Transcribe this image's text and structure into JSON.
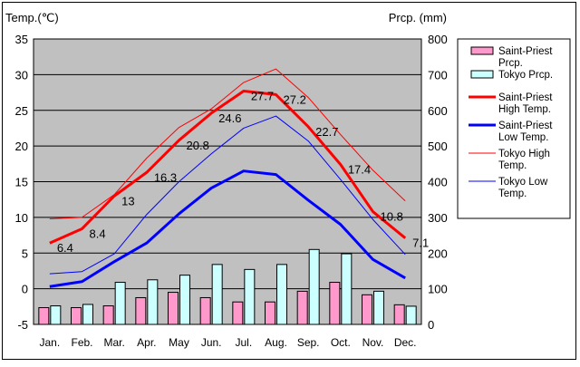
{
  "chart_data": {
    "type": "bar+line",
    "categories": [
      "Jan.",
      "Feb.",
      "Mar.",
      "Apr.",
      "May",
      "Jun.",
      "Jul.",
      "Aug.",
      "Sep.",
      "Oct.",
      "Nov.",
      "Dec."
    ],
    "left_axis": {
      "label": "Temp.(℃)",
      "min": -5,
      "max": 35,
      "step": 5,
      "ticks": [
        "35",
        "30",
        "25",
        "20",
        "15",
        "10",
        "5",
        "0",
        "-5"
      ]
    },
    "right_axis": {
      "label": "Prcp. (mm)",
      "min": 0,
      "max": 800,
      "step": 100,
      "ticks": [
        "800",
        "700",
        "600",
        "500",
        "400",
        "300",
        "200",
        "100",
        "0"
      ]
    },
    "grid": true,
    "legend_position": "right",
    "bar_series": [
      {
        "name": "Saint-Priest Prcp.",
        "color": "#ff99cc",
        "axis": "right",
        "values": [
          47,
          47,
          52,
          75,
          90,
          75,
          63,
          63,
          93,
          118,
          83,
          55
        ]
      },
      {
        "name": "Tokyo Prcp.",
        "color": "#ccffff",
        "axis": "right",
        "values": [
          52,
          56,
          118,
          125,
          138,
          168,
          154,
          168,
          210,
          198,
          93,
          51
        ]
      }
    ],
    "line_series": [
      {
        "name": "Saint-Priest High Temp.",
        "color": "#ff0000",
        "width": 3,
        "axis": "left",
        "values": [
          6.4,
          8.4,
          13,
          16.3,
          20.8,
          24.6,
          27.7,
          27.2,
          22.7,
          17.4,
          10.8,
          7.1
        ],
        "labels": [
          "6.4",
          "8.4",
          "13",
          "16.3",
          "20.8",
          "24.6",
          "27.7",
          "27.2",
          "22.7",
          "17.4",
          "10.8",
          "7.1"
        ]
      },
      {
        "name": "Saint-Priest Low Temp.",
        "color": "#0000ff",
        "width": 3,
        "axis": "left",
        "values": [
          0.3,
          1.0,
          3.8,
          6.4,
          10.5,
          14.1,
          16.5,
          16.0,
          12.4,
          9.0,
          4.1,
          1.5
        ]
      },
      {
        "name": "Tokyo High Temp.",
        "color": "#ff0000",
        "width": 1,
        "axis": "left",
        "values": [
          9.8,
          10.0,
          13.2,
          18.3,
          22.6,
          25.2,
          28.9,
          30.8,
          26.8,
          21.6,
          16.6,
          12.3
        ]
      },
      {
        "name": "Tokyo Low Temp.",
        "color": "#0000ff",
        "width": 1,
        "axis": "left",
        "values": [
          2.1,
          2.4,
          4.9,
          10.4,
          15.0,
          18.9,
          22.5,
          24.2,
          20.7,
          15.3,
          9.7,
          4.8
        ]
      }
    ],
    "legend": [
      {
        "name": "Saint-Priest Prcp.",
        "lines": [
          "Saint-Priest",
          "Prcp."
        ],
        "kind": "box",
        "color": "#ff99cc"
      },
      {
        "name": "Tokyo Prcp.",
        "lines": [
          "Tokyo Prcp."
        ],
        "kind": "box",
        "color": "#ccffff"
      },
      {
        "name": "Saint-Priest High Temp.",
        "lines": [
          "Saint-Priest",
          "High Temp."
        ],
        "kind": "line",
        "color": "#ff0000",
        "width": 3
      },
      {
        "name": "Saint-Priest Low Temp.",
        "lines": [
          "Saint-Priest",
          "Low Temp."
        ],
        "kind": "line",
        "color": "#0000ff",
        "width": 3
      },
      {
        "name": "Tokyo High Temp.",
        "lines": [
          "Tokyo High",
          "Temp."
        ],
        "kind": "line",
        "color": "#ff0000",
        "width": 1
      },
      {
        "name": "Tokyo Low Temp.",
        "lines": [
          "Tokyo Low",
          "Temp."
        ],
        "kind": "line",
        "color": "#0000ff",
        "width": 1
      }
    ]
  }
}
